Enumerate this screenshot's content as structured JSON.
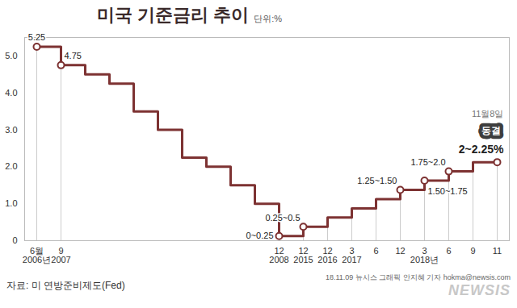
{
  "chart_data": {
    "type": "line",
    "title": "미국 기준금리 추이",
    "subtitle": "단위:%",
    "source": "자료: 미 연방준비제도(Fed)",
    "credit": "18.11.09 뉴시스 그래픽 안지혜 기자 hokma@newsis.com",
    "watermark": "NEWSIS",
    "categories": [
      "6월\n2006년",
      "9\n2007",
      null,
      null,
      null,
      null,
      null,
      null,
      null,
      null,
      "12\n2008",
      "12\n2015",
      "12\n2016",
      "3\n2017",
      "6",
      "12",
      "3\n2018년",
      "6",
      "9",
      "11"
    ],
    "values": [
      5.25,
      4.75,
      4.5,
      4.25,
      3.5,
      3.0,
      2.25,
      2.0,
      1.5,
      1.0,
      0.125,
      0.375,
      0.625,
      0.875,
      1.125,
      1.375,
      1.625,
      1.875,
      2.125,
      2.125
    ],
    "color": "#7d3232",
    "line_style": "step",
    "marker": "circle",
    "grid": false,
    "ylim": [
      0,
      5.5
    ],
    "yticks": [
      0,
      {
        "value": 1,
        "label": "1.0"
      },
      {
        "value": 2,
        "label": "2.0"
      },
      {
        "value": 3,
        "label": "3.0"
      },
      {
        "value": 4,
        "label": "4.0"
      },
      {
        "value": 5,
        "label": "5.0"
      }
    ],
    "annotations": [
      {
        "index": 0,
        "text": "5.25"
      },
      {
        "index": 1,
        "text": "4.75"
      },
      {
        "index": 10,
        "text": "0~0.25"
      },
      {
        "index": 11,
        "text": "0.25~0.5"
      },
      {
        "index": 15,
        "text": "1.25~1.50"
      },
      {
        "index": 16,
        "text": "1.50~1.75"
      },
      {
        "index": 17,
        "text": "1.75~2.0"
      },
      {
        "index": 19,
        "text": "2~2.25%",
        "date": "11월8일",
        "badge": "동결"
      }
    ]
  }
}
